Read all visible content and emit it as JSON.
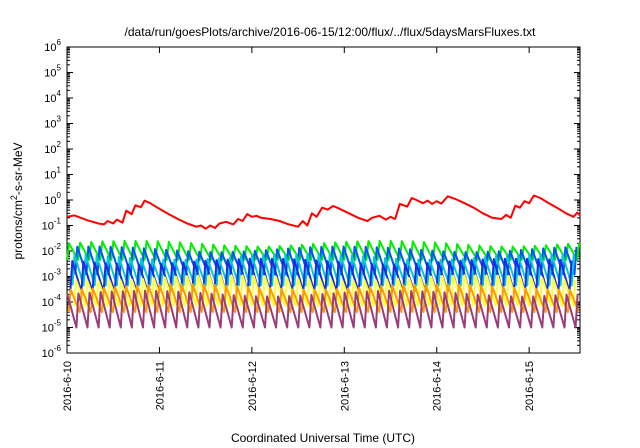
{
  "chart_data": {
    "type": "line",
    "title": "/data/run/goesPlots/archive/2016-06-15/12:00/flux/../flux/5daysMarsFluxes.txt",
    "xlabel": "Coordinated Universal Time (UTC)",
    "ylabel": "protons/cm2-s-sr-MeV",
    "y_scale": "log",
    "ylim": [
      1e-06,
      1000000.0
    ],
    "yticks": [
      {
        "value": 1e-06,
        "base": "10",
        "exp": "-6"
      },
      {
        "value": 1e-05,
        "base": "10",
        "exp": "-5"
      },
      {
        "value": 0.0001,
        "base": "10",
        "exp": "-4"
      },
      {
        "value": 0.001,
        "base": "10",
        "exp": "-3"
      },
      {
        "value": 0.01,
        "base": "10",
        "exp": "-2"
      },
      {
        "value": 0.1,
        "base": "10",
        "exp": "-1"
      },
      {
        "value": 1,
        "base": "10",
        "exp": "0"
      },
      {
        "value": 10,
        "base": "10",
        "exp": "1"
      },
      {
        "value": 100,
        "base": "10",
        "exp": "2"
      },
      {
        "value": 1000,
        "base": "10",
        "exp": "3"
      },
      {
        "value": 10000,
        "base": "10",
        "exp": "4"
      },
      {
        "value": 100000,
        "base": "10",
        "exp": "5"
      },
      {
        "value": 1000000,
        "base": "10",
        "exp": "6"
      }
    ],
    "x_unit": "days since 2016-6-10 00:00 UTC",
    "xlim": [
      0,
      5.55
    ],
    "xticks": [
      {
        "value": 0,
        "label": "2016-6-10"
      },
      {
        "value": 1,
        "label": "2016-6-11"
      },
      {
        "value": 2,
        "label": "2016-6-12"
      },
      {
        "value": 3,
        "label": "2016-6-13"
      },
      {
        "value": 4,
        "label": "2016-6-14"
      },
      {
        "value": 5,
        "label": "2016-6-15"
      }
    ],
    "grid": false,
    "legend": "none",
    "series": [
      {
        "color": "#ff0000",
        "points": [
          [
            0,
            0.22
          ],
          [
            0.08,
            0.25
          ],
          [
            0.15,
            0.2
          ],
          [
            0.22,
            0.16
          ],
          [
            0.28,
            0.14
          ],
          [
            0.34,
            0.12
          ],
          [
            0.4,
            0.11
          ],
          [
            0.44,
            0.15
          ],
          [
            0.5,
            0.12
          ],
          [
            0.54,
            0.17
          ],
          [
            0.6,
            0.13
          ],
          [
            0.64,
            0.38
          ],
          [
            0.7,
            0.28
          ],
          [
            0.74,
            0.62
          ],
          [
            0.8,
            0.52
          ],
          [
            0.84,
            0.95
          ],
          [
            0.9,
            0.75
          ],
          [
            1.0,
            0.45
          ],
          [
            1.1,
            0.28
          ],
          [
            1.2,
            0.18
          ],
          [
            1.3,
            0.12
          ],
          [
            1.4,
            0.09
          ],
          [
            1.45,
            0.1
          ],
          [
            1.5,
            0.075
          ],
          [
            1.55,
            0.1
          ],
          [
            1.6,
            0.08
          ],
          [
            1.65,
            0.12
          ],
          [
            1.72,
            0.14
          ],
          [
            1.8,
            0.11
          ],
          [
            1.85,
            0.18
          ],
          [
            1.9,
            0.15
          ],
          [
            1.95,
            0.28
          ],
          [
            2.0,
            0.22
          ],
          [
            2.05,
            0.24
          ],
          [
            2.1,
            0.2
          ],
          [
            2.2,
            0.18
          ],
          [
            2.3,
            0.15
          ],
          [
            2.4,
            0.11
          ],
          [
            2.5,
            0.09
          ],
          [
            2.55,
            0.15
          ],
          [
            2.6,
            0.1
          ],
          [
            2.65,
            0.3
          ],
          [
            2.7,
            0.22
          ],
          [
            2.76,
            0.5
          ],
          [
            2.82,
            0.42
          ],
          [
            2.88,
            0.58
          ],
          [
            2.95,
            0.45
          ],
          [
            3.05,
            0.3
          ],
          [
            3.15,
            0.2
          ],
          [
            3.25,
            0.15
          ],
          [
            3.3,
            0.2
          ],
          [
            3.38,
            0.24
          ],
          [
            3.45,
            0.17
          ],
          [
            3.5,
            0.22
          ],
          [
            3.55,
            0.18
          ],
          [
            3.6,
            0.7
          ],
          [
            3.68,
            0.55
          ],
          [
            3.73,
            1.2
          ],
          [
            3.78,
            1.0
          ],
          [
            3.85,
            0.75
          ],
          [
            3.9,
            0.95
          ],
          [
            3.95,
            0.7
          ],
          [
            4.0,
            0.9
          ],
          [
            4.05,
            0.72
          ],
          [
            4.12,
            1.4
          ],
          [
            4.2,
            1.1
          ],
          [
            4.3,
            0.75
          ],
          [
            4.4,
            0.5
          ],
          [
            4.5,
            0.3
          ],
          [
            4.6,
            0.2
          ],
          [
            4.7,
            0.18
          ],
          [
            4.75,
            0.26
          ],
          [
            4.8,
            0.2
          ],
          [
            4.85,
            0.6
          ],
          [
            4.9,
            0.5
          ],
          [
            4.95,
            0.9
          ],
          [
            5.0,
            0.75
          ],
          [
            5.05,
            1.5
          ],
          [
            5.12,
            1.2
          ],
          [
            5.2,
            0.8
          ],
          [
            5.3,
            0.5
          ],
          [
            5.4,
            0.3
          ],
          [
            5.48,
            0.22
          ],
          [
            5.52,
            0.32
          ],
          [
            5.55,
            0.25
          ]
        ]
      }
    ],
    "oscillating_series": [
      {
        "color": "#00ee00",
        "low": 0.0045,
        "high": 0.02,
        "phase": 0.0
      },
      {
        "color": "#0055ff",
        "low": 0.0012,
        "high": 0.012,
        "phase": 0.25
      },
      {
        "color": "#00cccc",
        "low": 0.00045,
        "high": 0.006,
        "phase": 0.5
      },
      {
        "color": "#1a2ee0",
        "low": 0.00025,
        "high": 0.004,
        "phase": 0.7
      },
      {
        "color": "#ffff33",
        "low": 7e-05,
        "high": 0.0009,
        "phase": 0.35
      },
      {
        "color": "#ff9900",
        "low": 4e-05,
        "high": 0.0004,
        "phase": 0.85
      },
      {
        "color": "#9b3d7a",
        "low": 1e-05,
        "high": 0.00022,
        "phase": 0.15
      }
    ],
    "oscillation_period_days": 0.12
  }
}
